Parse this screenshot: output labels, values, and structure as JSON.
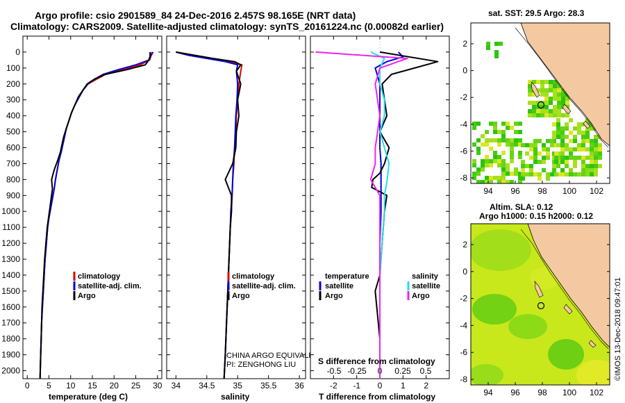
{
  "title": {
    "line1": "Argo profile: csio 2901589_84 24-Dec-2016 2.457S 98.165E (NRT data)",
    "line2": "Climatology: CARS2009. Satellite-adjusted climatology: synTS_20161224.nc (0.00082d earlier)"
  },
  "colors": {
    "climatology": "#dd0000",
    "satellite": "#0000dd",
    "argo": "#000000",
    "salinity_satellite": "#22ddee",
    "salinity_argo": "#ee22ee",
    "land": "#f4c9a2",
    "coast": "#000000"
  },
  "depth_axis": {
    "ticks": [
      0,
      100,
      200,
      300,
      400,
      500,
      600,
      700,
      800,
      900,
      1000,
      1100,
      1200,
      1300,
      1400,
      1500,
      1600,
      1700,
      1800,
      1900,
      2000
    ]
  },
  "panels": {
    "temperature": {
      "xlabel": "temperature (deg C)",
      "xticks": [
        "0",
        "5",
        "10",
        "15",
        "20",
        "25",
        "30"
      ],
      "legend": [
        "climatology",
        "satellite-adj. clim.",
        "Argo"
      ]
    },
    "salinity": {
      "xlabel": "salinity",
      "xticks": [
        "34",
        "34.5",
        "35",
        "35.5",
        "36"
      ],
      "legend": [
        "climatology",
        "satellite-adj. clim.",
        "Argo"
      ],
      "credit1": "CHINA ARGO EQUIVALENT",
      "credit2": "PI: ZENGHONG LIU"
    },
    "difference": {
      "xlabel": "T difference from climatology",
      "toplabel": "S difference from climatology",
      "xticks": [
        "-2",
        "-1",
        "0",
        "1",
        "2"
      ],
      "sticks": [
        "-0.5",
        "-0.25",
        "0",
        "0.25",
        "0.5"
      ],
      "legend_t_title": "temperature",
      "legend_s_title": "salinity",
      "legend_t": [
        "satellite",
        "Argo"
      ],
      "legend_s": [
        "satellite",
        "Argo"
      ]
    }
  },
  "maps": {
    "sst": {
      "title": "sat. SST: 29.5 Argo: 28.3",
      "yticks": [
        "2",
        "0",
        "-2",
        "-4",
        "-6",
        "-8"
      ],
      "xticks": [
        "94",
        "96",
        "98",
        "100",
        "102"
      ]
    },
    "sla": {
      "title1": "Altim. SLA: 0.12",
      "title2": "Argo h1000: 0.15 h2000: 0.12",
      "yticks": [
        "2",
        "0",
        "-2",
        "-4",
        "-6",
        "-8"
      ],
      "xticks": [
        "94",
        "96",
        "98",
        "100",
        "102"
      ]
    }
  },
  "watermark": "©IMOS 13-Dec-2018 09:47:01",
  "chart_data": [
    {
      "type": "line",
      "name": "temperature profile",
      "xlabel": "temperature (deg C)",
      "ylabel": "depth",
      "xlim": [
        -1,
        31
      ],
      "ylim": [
        2050,
        0
      ],
      "series": [
        {
          "name": "climatology",
          "x": [
            29.0,
            28.5,
            28.2,
            26,
            22,
            18,
            16,
            14,
            12.8,
            12,
            11,
            10.2,
            9.6,
            9.0,
            8.6,
            8.2,
            7.8,
            7.3,
            6.9,
            6.5,
            6.2,
            5.8,
            5.4,
            5.0,
            4.7,
            4.4,
            4.1,
            3.9,
            3.7,
            3.5,
            3.3,
            3.2,
            3.1,
            3.0,
            2.95
          ],
          "y": [
            0,
            25,
            50,
            80,
            110,
            140,
            170,
            200,
            240,
            280,
            330,
            380,
            430,
            480,
            530,
            580,
            630,
            680,
            740,
            800,
            860,
            920,
            980,
            1040,
            1100,
            1200,
            1300,
            1400,
            1500,
            1600,
            1700,
            1800,
            1900,
            2000,
            2050
          ]
        },
        {
          "name": "satellite-adj. clim.",
          "x": [
            28.8,
            28.4,
            28.0,
            25,
            21,
            17.5,
            15.5,
            14,
            12.8,
            12,
            11,
            10.2,
            9.6,
            9.0,
            8.6,
            8.2,
            7.8,
            7.3,
            6.9,
            6.5,
            6.2,
            5.8,
            5.4,
            5.0,
            4.7,
            4.4,
            4.1,
            3.9,
            3.7,
            3.5,
            3.3,
            3.2,
            3.1,
            3.0,
            2.95
          ],
          "y": [
            0,
            25,
            50,
            80,
            110,
            140,
            170,
            200,
            240,
            280,
            330,
            380,
            430,
            480,
            530,
            580,
            630,
            680,
            740,
            800,
            860,
            920,
            980,
            1040,
            1100,
            1200,
            1300,
            1400,
            1500,
            1600,
            1700,
            1800,
            1900,
            2000,
            2050
          ]
        },
        {
          "name": "Argo",
          "x": [
            28.3,
            28.3,
            28.0,
            27.2,
            23,
            18,
            15.5,
            13.8,
            12.8,
            11.8,
            11.0,
            10.2,
            9.6,
            9.0,
            8.4,
            8.0,
            7.6,
            7.0,
            6.2,
            5.6,
            5.8,
            5.5,
            5.2,
            4.9,
            4.6,
            4.3,
            4.0,
            3.8,
            3.6,
            3.4,
            3.3,
            3.2,
            3.1,
            3.0,
            2.95
          ],
          "y": [
            0,
            25,
            50,
            80,
            110,
            140,
            170,
            200,
            240,
            280,
            330,
            380,
            430,
            480,
            530,
            580,
            630,
            680,
            740,
            800,
            860,
            920,
            980,
            1040,
            1100,
            1200,
            1300,
            1400,
            1500,
            1600,
            1700,
            1800,
            1900,
            2000,
            2050
          ]
        }
      ]
    },
    {
      "type": "line",
      "name": "salinity profile",
      "xlabel": "salinity",
      "ylabel": "depth",
      "xlim": [
        33.85,
        36.1
      ],
      "ylim": [
        2050,
        0
      ],
      "series": [
        {
          "name": "climatology",
          "x": [
            34.0,
            34.25,
            34.55,
            34.85,
            35.07,
            35.05,
            35.02,
            35.0,
            34.98,
            34.97,
            34.95,
            34.94,
            34.92,
            34.91,
            34.9,
            34.88,
            34.87,
            34.86,
            34.85,
            34.84,
            34.83,
            34.82,
            34.81,
            34.8,
            34.78
          ],
          "y": [
            0,
            20,
            40,
            60,
            80,
            120,
            200,
            300,
            400,
            500,
            600,
            700,
            800,
            900,
            1000,
            1100,
            1200,
            1300,
            1400,
            1500,
            1600,
            1700,
            1800,
            1900,
            2050
          ]
        },
        {
          "name": "satellite-adj. clim.",
          "x": [
            34.0,
            34.2,
            34.5,
            34.8,
            35.0,
            34.98,
            35.0,
            34.99,
            34.97,
            34.96,
            34.95,
            34.93,
            34.92,
            34.91,
            34.89,
            34.88,
            34.87,
            34.86,
            34.85,
            34.84,
            34.83,
            34.82,
            34.81,
            34.8,
            34.78
          ],
          "y": [
            0,
            20,
            40,
            60,
            80,
            120,
            200,
            300,
            400,
            500,
            600,
            700,
            800,
            900,
            1000,
            1100,
            1200,
            1300,
            1400,
            1500,
            1600,
            1700,
            1800,
            1900,
            2050
          ]
        },
        {
          "name": "Argo",
          "x": [
            34.0,
            34.3,
            34.6,
            34.95,
            35.05,
            34.98,
            35.05,
            35.0,
            35.02,
            34.98,
            34.97,
            34.92,
            34.8,
            34.9,
            34.9,
            34.88,
            34.87,
            34.86,
            34.85,
            34.84,
            34.83,
            34.82,
            34.81,
            34.8,
            34.78
          ],
          "y": [
            0,
            20,
            40,
            60,
            80,
            120,
            200,
            300,
            400,
            500,
            600,
            700,
            800,
            900,
            1000,
            1100,
            1200,
            1300,
            1400,
            1500,
            1600,
            1700,
            1800,
            1900,
            2050
          ]
        }
      ]
    },
    {
      "type": "line",
      "name": "difference from climatology",
      "xlabel": "T difference from climatology",
      "xlim": [
        -3.0,
        3.0
      ],
      "ylim": [
        2050,
        0
      ],
      "series": [
        {
          "name": "temperature satellite",
          "x": [
            0.8,
            1.0,
            0.3,
            -0.2,
            -0.1,
            0.0,
            0.0,
            0.0,
            0.0,
            0.0,
            0.05,
            0.05,
            0.05,
            0.05,
            0.0,
            0.0,
            0.0,
            0.0,
            0.0
          ],
          "y": [
            0,
            30,
            60,
            100,
            150,
            200,
            300,
            400,
            500,
            600,
            700,
            800,
            900,
            1000,
            1200,
            1400,
            1600,
            1800,
            2050
          ]
        },
        {
          "name": "temperature Argo",
          "x": [
            0.0,
            2.5,
            1.5,
            0.5,
            0.1,
            0.2,
            0.3,
            0.0,
            0.4,
            0.2,
            0.0,
            -0.3,
            -0.35,
            0.3,
            0.2,
            0.1,
            0.0,
            -0.2,
            0.0,
            0.0
          ],
          "y": [
            0,
            60,
            100,
            140,
            200,
            300,
            400,
            500,
            600,
            700,
            760,
            800,
            850,
            900,
            1000,
            1200,
            1400,
            1500,
            1800,
            2050
          ]
        },
        {
          "name": "salinity satellite",
          "x": [
            -0.1,
            0.05,
            0.0,
            0.0,
            0.05,
            0.05,
            0.0,
            0.05,
            0.1,
            0.08,
            0.05,
            0.05,
            0.0,
            0.0
          ],
          "y": [
            0,
            40,
            100,
            200,
            300,
            400,
            500,
            600,
            700,
            800,
            900,
            1000,
            1400,
            2050
          ]
        },
        {
          "name": "salinity Argo",
          "x": [
            -0.7,
            0.3,
            0.0,
            -0.05,
            0.0,
            -0.05,
            -0.05,
            -0.1,
            0.0,
            0.0,
            0.0
          ],
          "y": [
            0,
            40,
            100,
            200,
            400,
            600,
            700,
            800,
            900,
            1400,
            2050
          ]
        }
      ]
    }
  ]
}
